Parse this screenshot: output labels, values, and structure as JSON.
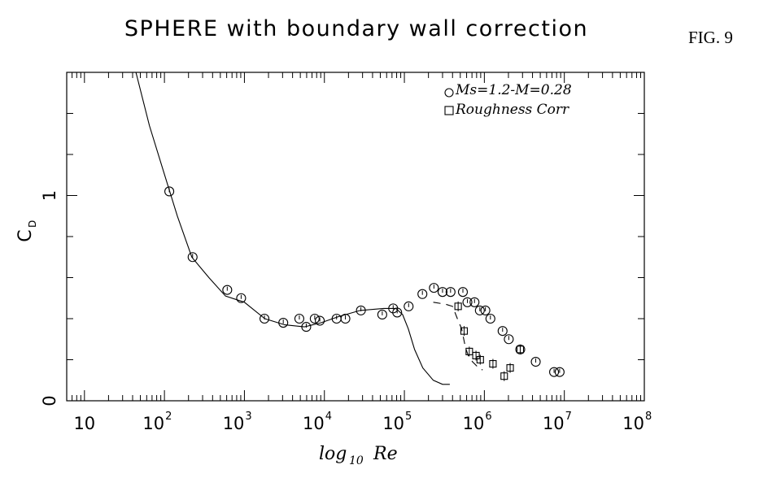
{
  "figure_label": "FIG. 9",
  "chart_data": {
    "type": "scatter",
    "title": "SPHERE with boundary wall correction",
    "xlabel": "log",
    "xlabel_subscript": "10",
    "xlabel_var": "Re",
    "ylabel": "C",
    "ylabel_subscript": "D",
    "x_scale": "log",
    "xlim": [
      6,
      100000000
    ],
    "ylim": [
      0,
      1.6
    ],
    "grid": false,
    "legend_position": "top-right",
    "x_ticks": [
      {
        "value": 10,
        "base": "10",
        "exp": ""
      },
      {
        "value": 100,
        "base": "10",
        "exp": "2"
      },
      {
        "value": 1000,
        "base": "10",
        "exp": "3"
      },
      {
        "value": 10000,
        "base": "10",
        "exp": "4"
      },
      {
        "value": 100000,
        "base": "10",
        "exp": "5"
      },
      {
        "value": 1000000,
        "base": "10",
        "exp": "6"
      },
      {
        "value": 10000000,
        "base": "10",
        "exp": "7"
      },
      {
        "value": 100000000,
        "base": "10",
        "exp": "8"
      }
    ],
    "y_ticks": [
      {
        "value": 0,
        "label": "0"
      },
      {
        "value": 1,
        "label": "1"
      }
    ],
    "legend": [
      {
        "label": "Ms=1.2-M=0.28",
        "marker": "circle"
      },
      {
        "label": "Roughness Corr",
        "marker": "square"
      }
    ],
    "series": [
      {
        "name": "Ms=1.2-M=0.28",
        "marker": "circle",
        "points": [
          [
            115,
            1.02
          ],
          [
            225,
            0.7
          ],
          [
            610,
            0.54
          ],
          [
            910,
            0.5
          ],
          [
            1780,
            0.4
          ],
          [
            3060,
            0.38
          ],
          [
            4860,
            0.4
          ],
          [
            5930,
            0.36
          ],
          [
            7570,
            0.4
          ],
          [
            8760,
            0.39
          ],
          [
            14200,
            0.4
          ],
          [
            18300,
            0.4
          ],
          [
            28600,
            0.44
          ],
          [
            52900,
            0.42
          ],
          [
            72400,
            0.45
          ],
          [
            81300,
            0.43
          ],
          [
            113000,
            0.46
          ],
          [
            168000,
            0.52
          ],
          [
            234000,
            0.55
          ],
          [
            300000,
            0.53
          ],
          [
            378000,
            0.53
          ],
          [
            539000,
            0.53
          ],
          [
            614000,
            0.48
          ],
          [
            753000,
            0.48
          ],
          [
            878000,
            0.44
          ],
          [
            1030000,
            0.44
          ],
          [
            1190000,
            0.4
          ],
          [
            1690000,
            0.34
          ],
          [
            2020000,
            0.3
          ],
          [
            2810000,
            0.25
          ],
          [
            4390000,
            0.19
          ],
          [
            7440000,
            0.14
          ],
          [
            8730000,
            0.14
          ]
        ]
      },
      {
        "name": "Roughness Corr",
        "marker": "square",
        "points": [
          [
            470000,
            0.46
          ],
          [
            558000,
            0.34
          ],
          [
            648000,
            0.24
          ],
          [
            786000,
            0.22
          ],
          [
            888000,
            0.2
          ],
          [
            1280000,
            0.18
          ],
          [
            1770000,
            0.12
          ],
          [
            2100000,
            0.16
          ],
          [
            2810000,
            0.25
          ]
        ]
      },
      {
        "name": "solid curve",
        "line": "solid",
        "points": [
          [
            44,
            1.6
          ],
          [
            65,
            1.34
          ],
          [
            97,
            1.12
          ],
          [
            145,
            0.9
          ],
          [
            220,
            0.7
          ],
          [
            360,
            0.6
          ],
          [
            580,
            0.51
          ],
          [
            1000,
            0.48
          ],
          [
            1800,
            0.4
          ],
          [
            3200,
            0.37
          ],
          [
            5600,
            0.36
          ],
          [
            9000,
            0.38
          ],
          [
            15000,
            0.41
          ],
          [
            28000,
            0.44
          ],
          [
            55000,
            0.45
          ],
          [
            78000,
            0.45
          ],
          [
            95000,
            0.42
          ],
          [
            112000,
            0.35
          ],
          [
            134000,
            0.25
          ],
          [
            170000,
            0.16
          ],
          [
            230000,
            0.1
          ],
          [
            300000,
            0.08
          ],
          [
            370000,
            0.08
          ]
        ]
      },
      {
        "name": "dashed curve",
        "line": "dashed",
        "points": [
          [
            230000,
            0.48
          ],
          [
            330000,
            0.47
          ],
          [
            400000,
            0.46
          ],
          [
            460000,
            0.4
          ],
          [
            520000,
            0.35
          ],
          [
            580000,
            0.26
          ],
          [
            630000,
            0.22
          ],
          [
            710000,
            0.19
          ],
          [
            850000,
            0.16
          ],
          [
            950000,
            0.15
          ]
        ]
      }
    ]
  }
}
